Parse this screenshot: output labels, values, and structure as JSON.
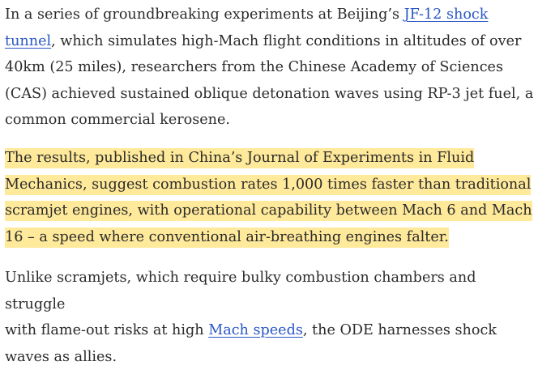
{
  "article": {
    "p1": {
      "before_link1": "In a series of groundbreaking experiments at Beijing’s ",
      "link1": "JF-12 shock",
      "line2_link": "tunnel",
      "after_link1": ", which simulates high-Mach flight conditions in altitudes of over",
      "line3": "40km (25 miles), researchers from the Chinese Academy of Sciences",
      "line4": "(CAS) achieved sustained oblique detonation waves using RP-3 jet fuel, a",
      "line5": "common commercial kerosene."
    },
    "p2": {
      "line1": "The results, published in China’s Journal of Experiments in Fluid",
      "line2": "Mechanics, suggest combustion rates 1,000 times faster than traditional",
      "line3": "scramjet engines, with operational capability between Mach 6 and Mach",
      "line4": "16 – a speed where conventional air-breathing engines falter."
    },
    "p3": {
      "line1": "Unlike scramjets, which require bulky combustion chambers and struggle",
      "line2_before": "with flame-out risks at high ",
      "link": "Mach speeds",
      "line2_after": ", the ODE harnesses shock",
      "line3": "waves as allies."
    },
    "colors": {
      "text": "#2b2b2b",
      "link": "#2a56c6",
      "highlight": "#ffe99a"
    }
  }
}
